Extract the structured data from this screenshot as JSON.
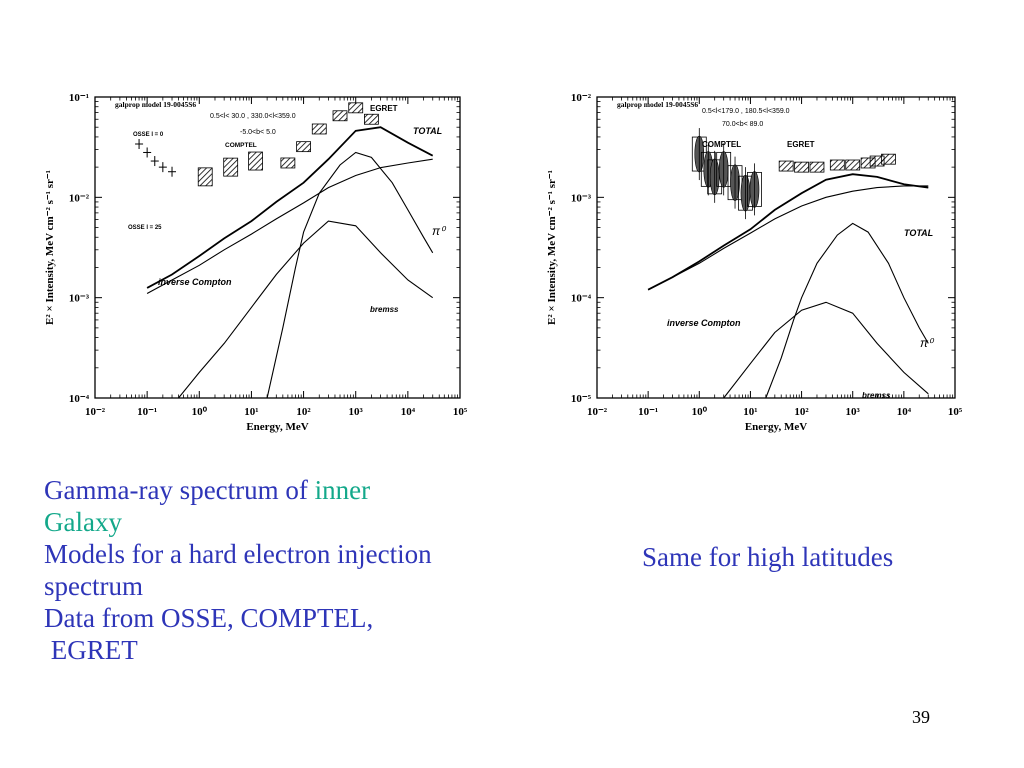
{
  "slide": {
    "number": "39",
    "captions": {
      "left": [
        {
          "parts": [
            {
              "text": "Gamma-ray spectrum of ",
              "color": "#2e35b8"
            },
            {
              "text": "inner",
              "color": "#13a88a"
            }
          ]
        },
        {
          "parts": [
            {
              "text": "Galaxy",
              "color": "#13a88a"
            }
          ]
        },
        {
          "parts": [
            {
              "text": "Models for a hard electron injection",
              "color": "#2e35b8"
            }
          ]
        },
        {
          "parts": [
            {
              "text": "spectrum",
              "color": "#2e35b8"
            }
          ]
        },
        {
          "parts": [
            {
              "text": "Data from OSSE, COMPTEL,",
              "color": "#2e35b8"
            }
          ]
        },
        {
          "parts": [
            {
              "text": " EGRET",
              "color": "#2e35b8"
            }
          ]
        }
      ],
      "right": "Same for high latitudes"
    }
  },
  "chart_data": [
    {
      "type": "line",
      "title": "galprop model 19-0045S6",
      "xlabel": "Energy, MeV",
      "ylabel": "E² × Intensity, MeV cm⁻² s⁻¹ sr⁻¹",
      "xscale": "log",
      "yscale": "log",
      "xlim": [
        0.01,
        100000
      ],
      "ylim": [
        0.0001,
        0.1
      ],
      "x_ticks": [
        "10⁻²",
        "10⁻¹",
        "10⁰",
        "10¹",
        "10²",
        "10³",
        "10⁴",
        "10⁵"
      ],
      "y_ticks": [
        "10⁻¹",
        "10⁻²",
        "10⁻³",
        "10⁻⁴"
      ],
      "annotations": [
        "0.5<l< 30.0 , 330.0<l<359.0",
        "-5.0<b< 5.0",
        "COMPTEL",
        "EGRET",
        "OSSE l = 0",
        "OSSE l = 25",
        "TOTAL",
        "π⁰",
        "inverse Compton",
        "bremss"
      ],
      "series": [
        {
          "name": "TOTAL",
          "x": [
            0.1,
            0.3,
            1,
            3,
            10,
            30,
            100,
            300,
            1000,
            3000,
            10000,
            30000
          ],
          "y": [
            0.00125,
            0.0017,
            0.0026,
            0.0039,
            0.0058,
            0.009,
            0.014,
            0.024,
            0.046,
            0.05,
            0.035,
            0.026
          ]
        },
        {
          "name": "inverse Compton",
          "x": [
            0.1,
            0.3,
            1,
            3,
            10,
            30,
            100,
            300,
            1000,
            3000,
            10000,
            30000
          ],
          "y": [
            0.0011,
            0.0015,
            0.0021,
            0.003,
            0.0043,
            0.0061,
            0.0088,
            0.0125,
            0.0165,
            0.0198,
            0.022,
            0.024
          ]
        },
        {
          "name": "π⁰",
          "x": [
            20,
            40,
            70,
            100,
            200,
            500,
            1000,
            2000,
            5000,
            10000,
            20000,
            30000
          ],
          "y": [
            0.0001,
            0.0005,
            0.002,
            0.0045,
            0.011,
            0.021,
            0.028,
            0.025,
            0.014,
            0.0075,
            0.004,
            0.0028
          ]
        },
        {
          "name": "bremss",
          "x": [
            0.4,
            1,
            3,
            10,
            30,
            100,
            300,
            1000,
            3000,
            10000,
            30000
          ],
          "y": [
            0.0001,
            0.00018,
            0.00035,
            0.0008,
            0.0017,
            0.0035,
            0.0058,
            0.0052,
            0.0028,
            0.0015,
            0.001
          ]
        }
      ],
      "data_groups": [
        {
          "name": "OSSE",
          "x": [
            0.07,
            0.1,
            0.14,
            0.2,
            0.3
          ],
          "y": [
            0.034,
            0.028,
            0.023,
            0.02,
            0.018
          ]
        },
        {
          "name": "COMPTEL",
          "x": [
            1.3,
            4,
            12
          ],
          "y": [
            0.016,
            0.02,
            0.023
          ]
        },
        {
          "name": "EGRET",
          "x": [
            50,
            100,
            200,
            500,
            1000,
            2000
          ],
          "y": [
            0.022,
            0.032,
            0.048,
            0.065,
            0.078,
            0.06
          ]
        }
      ]
    },
    {
      "type": "line",
      "title": "galprop model 19-0045S6",
      "xlabel": "Energy, MeV",
      "ylabel": "E² × Intensity, MeV cm⁻² s⁻¹ sr⁻¹",
      "xscale": "log",
      "yscale": "log",
      "xlim": [
        0.01,
        100000
      ],
      "ylim": [
        1e-05,
        0.01
      ],
      "x_ticks": [
        "10⁻²",
        "10⁻¹",
        "10⁰",
        "10¹",
        "10²",
        "10³",
        "10⁴",
        "10⁵"
      ],
      "y_ticks": [
        "10⁻²",
        "10⁻³",
        "10⁻⁴",
        "10⁻⁵"
      ],
      "annotations": [
        "0.5<l<179.0 , 180.5<l<359.0",
        "70.0<b< 89.0",
        "COMPTEL",
        "EGRET",
        "TOTAL",
        "π⁰",
        "inverse Compton",
        "bremss"
      ],
      "series": [
        {
          "name": "TOTAL",
          "x": [
            0.1,
            0.3,
            1,
            3,
            10,
            30,
            100,
            300,
            1000,
            3000,
            10000,
            30000
          ],
          "y": [
            0.00012,
            0.00016,
            0.00023,
            0.00033,
            0.00048,
            0.00075,
            0.0011,
            0.0015,
            0.0017,
            0.0016,
            0.00135,
            0.00125
          ]
        },
        {
          "name": "inverse Compton",
          "x": [
            0.1,
            0.3,
            1,
            3,
            10,
            30,
            100,
            300,
            1000,
            3000,
            10000,
            30000
          ],
          "y": [
            0.00012,
            0.00016,
            0.00022,
            0.00031,
            0.00044,
            0.00061,
            0.00082,
            0.001,
            0.00115,
            0.00125,
            0.0013,
            0.0013
          ]
        },
        {
          "name": "π⁰",
          "x": [
            20,
            40,
            70,
            100,
            200,
            500,
            1000,
            2000,
            5000,
            10000,
            20000,
            30000
          ],
          "y": [
            1e-05,
            2.5e-05,
            6e-05,
            0.0001,
            0.00022,
            0.00042,
            0.00055,
            0.00045,
            0.00022,
            0.0001,
            5e-05,
            3.5e-05
          ]
        },
        {
          "name": "bremss",
          "x": [
            3,
            10,
            30,
            100,
            300,
            1000,
            3000,
            10000,
            30000
          ],
          "y": [
            1e-05,
            2.2e-05,
            4.5e-05,
            7.5e-05,
            9e-05,
            7e-05,
            3.5e-05,
            1.8e-05,
            1.1e-05
          ]
        }
      ],
      "data_groups": [
        {
          "name": "COMPTEL",
          "x": [
            1,
            1.5,
            2,
            3,
            5,
            8,
            12
          ],
          "y": [
            0.0027,
            0.0019,
            0.0016,
            0.0019,
            0.0014,
            0.0011,
            0.0012
          ]
        },
        {
          "name": "EGRET",
          "x": [
            50,
            100,
            200,
            500,
            1000,
            2000,
            3000,
            5000
          ],
          "y": [
            0.00205,
            0.002,
            0.002,
            0.0021,
            0.0021,
            0.0022,
            0.0023,
            0.0024
          ]
        }
      ]
    }
  ]
}
